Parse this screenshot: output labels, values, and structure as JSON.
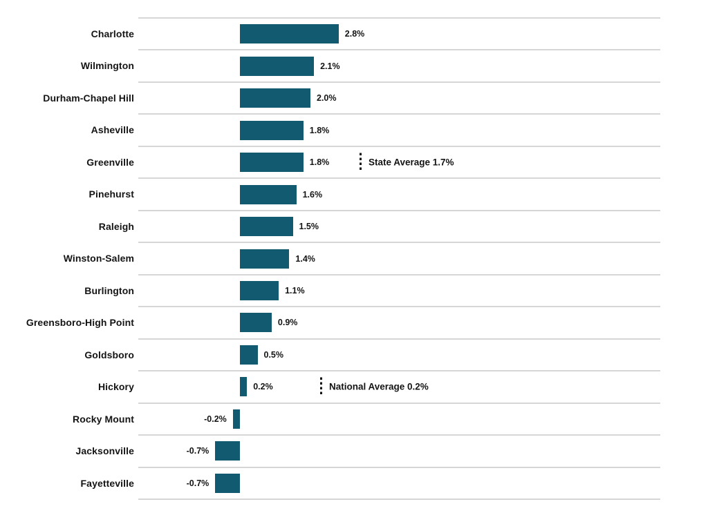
{
  "chart_data": {
    "type": "bar",
    "orientation": "horizontal",
    "title": "",
    "xlabel": "",
    "ylabel": "",
    "categories": [
      "Charlotte",
      "Wilmington",
      "Durham-Chapel Hill",
      "Asheville",
      "Greenville",
      "Pinehurst",
      "Raleigh",
      "Winston-Salem",
      "Burlington",
      "Greensboro-High Point",
      "Goldsboro",
      "Hickory",
      "Rocky Mount",
      "Jacksonville",
      "Fayetteville"
    ],
    "values": [
      2.8,
      2.1,
      2.0,
      1.8,
      1.8,
      1.6,
      1.5,
      1.4,
      1.1,
      0.9,
      0.5,
      0.2,
      -0.2,
      -0.7,
      -0.7
    ],
    "value_labels": [
      "2.8%",
      "2.1%",
      "2.0%",
      "1.8%",
      "1.8%",
      "1.6%",
      "1.5%",
      "1.4%",
      "1.1%",
      "0.9%",
      "0.5%",
      "0.2%",
      "-0.2%",
      "-0.7%",
      "-0.7%"
    ],
    "annotations": [
      {
        "text": "State Average 1.7%",
        "value": 1.7,
        "row": "Greenville"
      },
      {
        "text": "National Average 0.2%",
        "value": 0.2,
        "row": "Hickory"
      }
    ],
    "bar_color": "#115A70",
    "gridline_color": "#d6d6d6",
    "text_color": "#141414",
    "xlim": [
      -2.9,
      11.9
    ],
    "grid": "horizontal-row-separators",
    "legend": "none"
  }
}
